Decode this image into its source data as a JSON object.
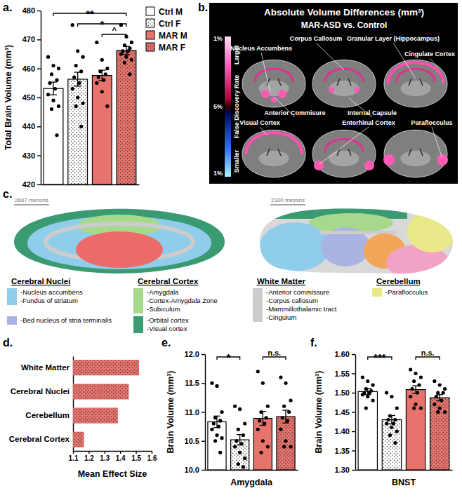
{
  "chart_data": [
    {
      "type": "bar",
      "panel": "a.",
      "ylabel": "Total Brain Volume (mm³)",
      "categories": [
        "Ctrl M",
        "Ctrl F",
        "MAR M",
        "MAR F"
      ],
      "values": [
        453.1,
        456.3,
        457.6,
        466.2
      ],
      "errors": [
        2.2,
        2.4,
        1.8,
        1.4
      ],
      "points": [
        [
          464,
          461,
          460,
          458,
          456,
          455,
          453,
          451,
          449,
          447,
          446,
          437
        ],
        [
          475,
          466,
          464,
          461,
          459,
          457,
          455,
          453,
          450,
          448,
          447,
          440
        ],
        [
          469,
          463,
          460,
          459,
          458,
          457,
          456,
          455,
          452,
          447
        ],
        [
          475,
          471,
          469,
          468,
          467,
          466,
          466,
          465,
          464,
          463,
          462,
          458
        ]
      ],
      "colors": [
        "#ffffff",
        "#ffffff",
        "#e8736c",
        "#e8736c"
      ],
      "ylim": [
        420,
        480
      ],
      "yticks": [
        420,
        430,
        440,
        450,
        460,
        470,
        480
      ],
      "legend": "right",
      "tick_labels": "y",
      "annotations": [
        {
          "text": "**",
          "between": [
            0,
            3
          ]
        },
        {
          "text": "*",
          "between": [
            1,
            3
          ]
        },
        {
          "text": "^",
          "between": [
            2,
            3
          ]
        }
      ]
    },
    {
      "type": "bar",
      "panel": "d.",
      "orientation": "horizontal",
      "xlabel": "Mean Effect Size",
      "categories": [
        "White Matter",
        "Cerebral Nuclei",
        "Cerebellum",
        "Cerebral Cortex"
      ],
      "values": [
        1.52,
        1.455,
        1.385,
        1.17
      ],
      "color": "#e8736c",
      "xlim": [
        1.1,
        1.6
      ],
      "xticks": [
        1.1,
        1.2,
        1.3,
        1.4,
        1.5,
        1.6
      ]
    },
    {
      "type": "bar",
      "panel": "e.",
      "ylabel": "Brain Volume (mm³)",
      "xlabel": "Amygdala",
      "categories": [
        null,
        null,
        null,
        null
      ],
      "values": [
        10.83,
        10.52,
        10.89,
        10.92
      ],
      "errors": [
        0.1,
        0.09,
        0.12,
        0.11
      ],
      "points": [
        [
          11.5,
          11.45,
          11.0,
          10.9,
          10.85,
          10.8,
          10.75,
          10.7,
          10.6,
          10.55,
          10.5,
          10.3
        ],
        [
          11.1,
          11.05,
          10.8,
          10.7,
          10.6,
          10.5,
          10.45,
          10.4,
          10.3,
          10.2,
          10.1,
          10.05
        ],
        [
          11.7,
          11.5,
          11.1,
          11.0,
          10.9,
          10.85,
          10.8,
          10.7,
          10.5,
          10.4,
          10.3
        ],
        [
          11.6,
          11.5,
          11.2,
          11.1,
          11.0,
          10.9,
          10.85,
          10.7,
          10.5,
          10.4,
          10.4
        ]
      ],
      "colors": [
        "#ffffff",
        "#ffffff",
        "#e8736c",
        "#e8736c"
      ],
      "ylim": [
        10,
        12
      ],
      "yticks": [
        {
          "value": 10,
          "label": "10.0"
        },
        10.5,
        {
          "value": 11,
          "label": "11.0"
        },
        11.5,
        {
          "value": 12,
          "label": "12.0"
        }
      ],
      "tick_labels": "y",
      "annotations": [
        {
          "text": "*",
          "between": [
            0,
            1
          ]
        },
        {
          "text": "n.s.",
          "between": [
            2,
            3
          ]
        }
      ]
    },
    {
      "type": "bar",
      "panel": "f.",
      "ylabel": "Brain Volume (mm³)",
      "xlabel": "BNST",
      "categories": [
        null,
        null,
        null,
        null
      ],
      "values": [
        1.503,
        1.43,
        1.508,
        1.487
      ],
      "errors": [
        0.008,
        0.011,
        0.01,
        0.008
      ],
      "points": [
        [
          1.54,
          1.53,
          1.52,
          1.51,
          1.505,
          1.5,
          1.5,
          1.495,
          1.49,
          1.48,
          1.46
        ],
        [
          1.5,
          1.49,
          1.46,
          1.44,
          1.43,
          1.43,
          1.42,
          1.42,
          1.41,
          1.4,
          1.39,
          1.37
        ],
        [
          1.56,
          1.55,
          1.54,
          1.53,
          1.52,
          1.51,
          1.5,
          1.49,
          1.47,
          1.46,
          1.46
        ],
        [
          1.53,
          1.52,
          1.51,
          1.5,
          1.5,
          1.49,
          1.48,
          1.47,
          1.46,
          1.45,
          1.45
        ]
      ],
      "colors": [
        "#ffffff",
        "#ffffff",
        "#e8736c",
        "#e8736c"
      ],
      "ylim": [
        1.3,
        1.6
      ],
      "yticks": [
        {
          "value": 1.3,
          "label": "1.30"
        },
        1.35,
        {
          "value": 1.4,
          "label": "1.40"
        },
        1.45,
        {
          "value": 1.5,
          "label": "1.50"
        },
        1.55,
        {
          "value": 1.6,
          "label": "1.60"
        }
      ],
      "tick_labels": "y",
      "annotations": [
        {
          "text": "***",
          "between": [
            0,
            1
          ]
        },
        {
          "text": "n.s.",
          "between": [
            2,
            3
          ]
        }
      ]
    }
  ],
  "brain_map": {
    "panel": "b.",
    "title": "Absolute Volume Differences (mm³)",
    "subtitle": "MAR-ASD vs. Control",
    "colorbar": {
      "title": "False Discovery Rate",
      "labels": [
        "1%",
        "5%",
        "1%"
      ],
      "larger": "Larger",
      "smaller": "Smaller"
    },
    "regions": [
      "Nucleus Accumbens",
      "Corpus Callosum",
      "Granular Layer (Hippocampus)",
      "Cingulate Cortex",
      "Anterior Commisure",
      "Internal Capsule",
      "Visual Cortex",
      "Entorhinal Cortex",
      "Paraflocculus"
    ]
  },
  "atlas": {
    "panel": "c.",
    "scale_bars": [
      "2667 microns",
      "2300 microns"
    ],
    "groups": [
      {
        "name": "Cerebral Nuclei",
        "sets": [
          {
            "color": "#8fcdeb",
            "items": [
              "-Nucleus accumbens",
              "-Fundus of striatum"
            ]
          },
          {
            "color": "#aab4e2",
            "items": [
              "-Bed nucleus of stria terminalis"
            ]
          }
        ]
      },
      {
        "name": "Cerebral Cortex",
        "sets": [
          {
            "color": "#a6d98c",
            "items": [
              "-Amygdala",
              "-Cortex-Amygdala Zone",
              "-Subiculum"
            ]
          },
          {
            "color": "#3a9a72",
            "items": [
              "-Orbital cortex",
              "-Visual cortex"
            ]
          }
        ]
      },
      {
        "name": "White Matter",
        "sets": [
          {
            "color": "#cccccc",
            "items": [
              "-Anterior commissure",
              "-Corpus callosum",
              "-Mammillothalamic tract",
              "-Cingulum"
            ]
          }
        ]
      },
      {
        "name": "Cerebellum",
        "sets": [
          {
            "color": "#e9e98a",
            "items": [
              "-Paraflocculus"
            ]
          }
        ]
      }
    ]
  }
}
